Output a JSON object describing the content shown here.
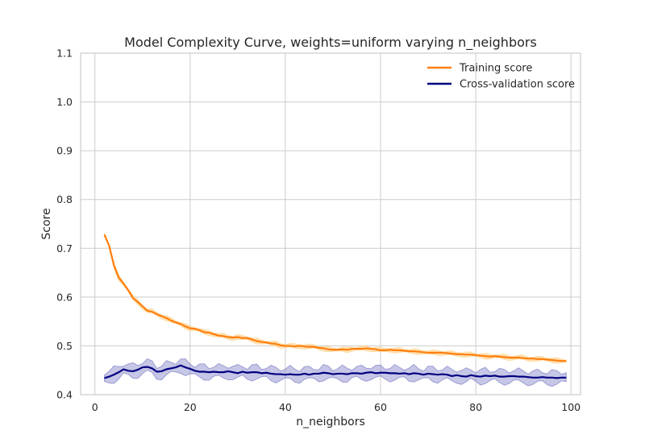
{
  "chart_data": {
    "type": "line",
    "title": "Model Complexity Curve, weights=uniform varying n_neighbors",
    "xlabel": "n_neighbors",
    "ylabel": "Score",
    "xlim": [
      -3,
      102
    ],
    "ylim": [
      0.4,
      1.1
    ],
    "xticks": [
      0,
      20,
      40,
      60,
      80,
      100
    ],
    "yticks": [
      0.4,
      0.5,
      0.6,
      0.7,
      0.8,
      0.9,
      1.0,
      1.1
    ],
    "xtick_labels": [
      "0",
      "20",
      "40",
      "60",
      "80",
      "100"
    ],
    "ytick_labels": [
      "0.4",
      "0.5",
      "0.6",
      "0.7",
      "0.8",
      "0.9",
      "1.0",
      "1.1"
    ],
    "grid": true,
    "legend_position": "top-right",
    "series": [
      {
        "name": "Training score",
        "color": "#ff7f0e",
        "band_color": "#ffd28c",
        "band_opacity": 0.6,
        "points": [
          [
            2,
            0.728
          ],
          [
            3,
            0.705
          ],
          [
            4,
            0.665
          ],
          [
            5,
            0.64
          ],
          [
            6,
            0.628
          ],
          [
            7,
            0.614
          ],
          [
            8,
            0.598
          ],
          [
            9,
            0.59
          ],
          [
            10,
            0.581
          ],
          [
            11,
            0.572
          ],
          [
            12,
            0.57
          ],
          [
            13,
            0.565
          ],
          [
            14,
            0.561
          ],
          [
            15,
            0.557
          ],
          [
            16,
            0.552
          ],
          [
            17,
            0.548
          ],
          [
            18,
            0.545
          ],
          [
            19,
            0.54
          ],
          [
            20,
            0.536
          ],
          [
            21,
            0.535
          ],
          [
            22,
            0.532
          ],
          [
            23,
            0.528
          ],
          [
            24,
            0.527
          ],
          [
            25,
            0.524
          ],
          [
            26,
            0.521
          ],
          [
            27,
            0.52
          ],
          [
            28,
            0.518
          ],
          [
            29,
            0.517
          ],
          [
            30,
            0.518
          ],
          [
            31,
            0.516
          ],
          [
            32,
            0.516
          ],
          [
            33,
            0.513
          ],
          [
            34,
            0.51
          ],
          [
            35,
            0.508
          ],
          [
            36,
            0.507
          ],
          [
            37,
            0.505
          ],
          [
            38,
            0.504
          ],
          [
            39,
            0.501
          ],
          [
            40,
            0.5
          ],
          [
            41,
            0.5
          ],
          [
            42,
            0.499
          ],
          [
            43,
            0.5
          ],
          [
            44,
            0.499
          ],
          [
            45,
            0.498
          ],
          [
            46,
            0.498
          ],
          [
            47,
            0.496
          ],
          [
            48,
            0.495
          ],
          [
            49,
            0.493
          ],
          [
            50,
            0.492
          ],
          [
            51,
            0.492
          ],
          [
            52,
            0.493
          ],
          [
            53,
            0.492
          ],
          [
            54,
            0.494
          ],
          [
            55,
            0.494
          ],
          [
            56,
            0.494
          ],
          [
            57,
            0.495
          ],
          [
            58,
            0.494
          ],
          [
            59,
            0.493
          ],
          [
            60,
            0.491
          ],
          [
            61,
            0.491
          ],
          [
            62,
            0.492
          ],
          [
            63,
            0.491
          ],
          [
            64,
            0.491
          ],
          [
            65,
            0.49
          ],
          [
            66,
            0.489
          ],
          [
            67,
            0.489
          ],
          [
            68,
            0.488
          ],
          [
            69,
            0.487
          ],
          [
            70,
            0.486
          ],
          [
            71,
            0.486
          ],
          [
            72,
            0.486
          ],
          [
            73,
            0.486
          ],
          [
            74,
            0.485
          ],
          [
            75,
            0.484
          ],
          [
            76,
            0.483
          ],
          [
            77,
            0.483
          ],
          [
            78,
            0.482
          ],
          [
            79,
            0.482
          ],
          [
            80,
            0.481
          ],
          [
            81,
            0.48
          ],
          [
            82,
            0.479
          ],
          [
            83,
            0.478
          ],
          [
            84,
            0.479
          ],
          [
            85,
            0.478
          ],
          [
            86,
            0.477
          ],
          [
            87,
            0.476
          ],
          [
            88,
            0.476
          ],
          [
            89,
            0.476
          ],
          [
            90,
            0.475
          ],
          [
            91,
            0.474
          ],
          [
            92,
            0.474
          ],
          [
            93,
            0.473
          ],
          [
            94,
            0.473
          ],
          [
            95,
            0.472
          ],
          [
            96,
            0.471
          ],
          [
            97,
            0.47
          ],
          [
            98,
            0.469
          ],
          [
            99,
            0.469
          ]
        ],
        "band_halfwidth": 0.004
      },
      {
        "name": "Cross-validation score",
        "color": "#000080",
        "band_color": "#8080c8",
        "band_opacity": 0.45,
        "points": [
          [
            2,
            0.434
          ],
          [
            3,
            0.437
          ],
          [
            4,
            0.441
          ],
          [
            5,
            0.446
          ],
          [
            6,
            0.452
          ],
          [
            7,
            0.449
          ],
          [
            8,
            0.448
          ],
          [
            9,
            0.451
          ],
          [
            10,
            0.456
          ],
          [
            11,
            0.457
          ],
          [
            12,
            0.454
          ],
          [
            13,
            0.447
          ],
          [
            14,
            0.448
          ],
          [
            15,
            0.452
          ],
          [
            16,
            0.454
          ],
          [
            17,
            0.456
          ],
          [
            18,
            0.46
          ],
          [
            19,
            0.456
          ],
          [
            20,
            0.453
          ],
          [
            21,
            0.449
          ],
          [
            22,
            0.447
          ],
          [
            23,
            0.447
          ],
          [
            24,
            0.446
          ],
          [
            25,
            0.447
          ],
          [
            26,
            0.446
          ],
          [
            27,
            0.446
          ],
          [
            28,
            0.448
          ],
          [
            29,
            0.446
          ],
          [
            30,
            0.444
          ],
          [
            31,
            0.447
          ],
          [
            32,
            0.445
          ],
          [
            33,
            0.446
          ],
          [
            34,
            0.446
          ],
          [
            35,
            0.444
          ],
          [
            36,
            0.445
          ],
          [
            37,
            0.443
          ],
          [
            38,
            0.442
          ],
          [
            39,
            0.442
          ],
          [
            40,
            0.441
          ],
          [
            41,
            0.442
          ],
          [
            42,
            0.441
          ],
          [
            43,
            0.441
          ],
          [
            44,
            0.443
          ],
          [
            45,
            0.441
          ],
          [
            46,
            0.443
          ],
          [
            47,
            0.443
          ],
          [
            48,
            0.445
          ],
          [
            49,
            0.444
          ],
          [
            50,
            0.442
          ],
          [
            51,
            0.443
          ],
          [
            52,
            0.443
          ],
          [
            53,
            0.442
          ],
          [
            54,
            0.444
          ],
          [
            55,
            0.444
          ],
          [
            56,
            0.443
          ],
          [
            57,
            0.445
          ],
          [
            58,
            0.446
          ],
          [
            59,
            0.444
          ],
          [
            60,
            0.445
          ],
          [
            61,
            0.445
          ],
          [
            62,
            0.444
          ],
          [
            63,
            0.444
          ],
          [
            64,
            0.443
          ],
          [
            65,
            0.444
          ],
          [
            66,
            0.442
          ],
          [
            67,
            0.444
          ],
          [
            68,
            0.443
          ],
          [
            69,
            0.441
          ],
          [
            70,
            0.443
          ],
          [
            71,
            0.442
          ],
          [
            72,
            0.441
          ],
          [
            73,
            0.442
          ],
          [
            74,
            0.441
          ],
          [
            75,
            0.438
          ],
          [
            76,
            0.44
          ],
          [
            77,
            0.438
          ],
          [
            78,
            0.437
          ],
          [
            79,
            0.44
          ],
          [
            80,
            0.438
          ],
          [
            81,
            0.437
          ],
          [
            82,
            0.439
          ],
          [
            83,
            0.438
          ],
          [
            84,
            0.439
          ],
          [
            85,
            0.437
          ],
          [
            86,
            0.437
          ],
          [
            87,
            0.438
          ],
          [
            88,
            0.438
          ],
          [
            89,
            0.437
          ],
          [
            90,
            0.437
          ],
          [
            91,
            0.436
          ],
          [
            92,
            0.435
          ],
          [
            93,
            0.435
          ],
          [
            94,
            0.436
          ],
          [
            95,
            0.435
          ],
          [
            96,
            0.435
          ],
          [
            97,
            0.434
          ],
          [
            98,
            0.435
          ],
          [
            99,
            0.435
          ]
        ],
        "band_halfwidth": 0.012
      }
    ]
  }
}
